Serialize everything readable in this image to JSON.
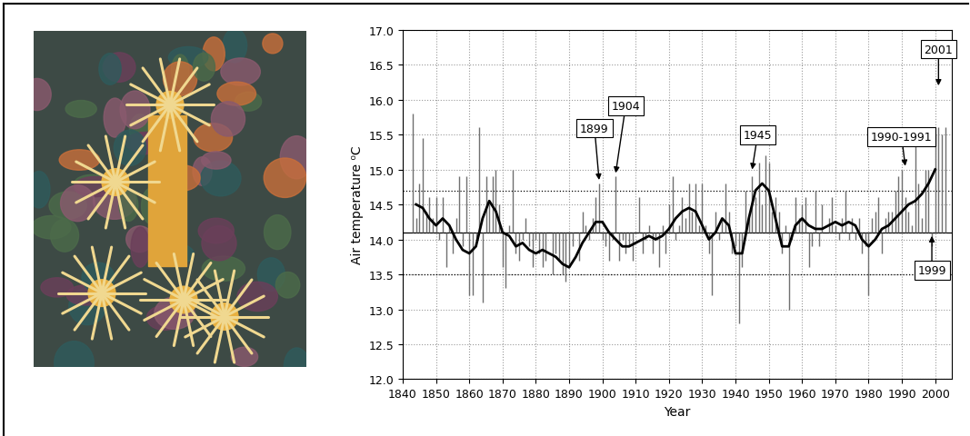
{
  "chart_data": {
    "type": "bar",
    "xlabel": "Year",
    "ylabel": "Air temperature ⁰C",
    "x": [
      1843,
      1844,
      1845,
      1846,
      1847,
      1848,
      1849,
      1850,
      1851,
      1852,
      1853,
      1854,
      1855,
      1856,
      1857,
      1858,
      1859,
      1860,
      1861,
      1862,
      1863,
      1864,
      1865,
      1866,
      1867,
      1868,
      1869,
      1870,
      1871,
      1872,
      1873,
      1874,
      1875,
      1876,
      1877,
      1878,
      1879,
      1880,
      1881,
      1882,
      1883,
      1884,
      1885,
      1886,
      1887,
      1888,
      1889,
      1890,
      1891,
      1892,
      1893,
      1894,
      1895,
      1896,
      1897,
      1898,
      1899,
      1900,
      1901,
      1902,
      1903,
      1904,
      1905,
      1906,
      1907,
      1908,
      1909,
      1910,
      1911,
      1912,
      1913,
      1914,
      1915,
      1916,
      1917,
      1918,
      1919,
      1920,
      1921,
      1922,
      1923,
      1924,
      1925,
      1926,
      1927,
      1928,
      1929,
      1930,
      1931,
      1932,
      1933,
      1934,
      1935,
      1936,
      1937,
      1938,
      1939,
      1940,
      1941,
      1942,
      1943,
      1944,
      1945,
      1946,
      1947,
      1948,
      1949,
      1950,
      1951,
      1952,
      1953,
      1954,
      1955,
      1956,
      1957,
      1958,
      1959,
      1960,
      1961,
      1962,
      1963,
      1964,
      1965,
      1966,
      1967,
      1968,
      1969,
      1970,
      1971,
      1972,
      1973,
      1974,
      1975,
      1976,
      1977,
      1978,
      1979,
      1980,
      1981,
      1982,
      1983,
      1984,
      1985,
      1986,
      1987,
      1988,
      1989,
      1990,
      1991,
      1992,
      1993,
      1994,
      1995,
      1996,
      1997,
      1998,
      1999,
      2000,
      2001,
      2002,
      2003
    ],
    "values": [
      15.8,
      14.3,
      14.8,
      15.45,
      14.4,
      14.6,
      14.3,
      14.6,
      14.0,
      14.6,
      13.6,
      14.2,
      13.8,
      14.3,
      14.9,
      13.9,
      14.9,
      13.2,
      13.2,
      14.0,
      15.6,
      13.1,
      14.9,
      14.5,
      14.9,
      15.0,
      14.5,
      13.6,
      13.3,
      14.2,
      15.0,
      13.8,
      13.7,
      14.0,
      14.3,
      13.9,
      13.6,
      14.0,
      13.8,
      13.6,
      13.7,
      14.1,
      13.5,
      13.8,
      13.7,
      13.5,
      13.4,
      13.6,
      13.9,
      14.1,
      13.7,
      14.4,
      14.2,
      14.0,
      14.3,
      14.6,
      14.8,
      14.0,
      13.9,
      13.7,
      14.0,
      14.9,
      13.7,
      14.0,
      13.8,
      13.9,
      13.7,
      14.1,
      14.6,
      13.8,
      14.0,
      14.2,
      13.8,
      14.0,
      13.6,
      14.2,
      13.8,
      14.5,
      14.9,
      14.0,
      14.2,
      14.6,
      14.3,
      14.8,
      14.4,
      14.8,
      14.2,
      14.8,
      14.2,
      13.8,
      13.2,
      14.4,
      14.0,
      14.3,
      14.8,
      14.4,
      13.8,
      13.9,
      12.8,
      13.6,
      14.7,
      14.3,
      14.9,
      14.6,
      15.1,
      14.5,
      15.2,
      15.1,
      14.4,
      14.6,
      14.4,
      13.8,
      14.2,
      13.0,
      14.0,
      14.6,
      14.3,
      14.5,
      14.6,
      13.6,
      13.9,
      14.7,
      13.9,
      14.5,
      14.1,
      14.3,
      14.6,
      14.2,
      14.0,
      14.3,
      14.7,
      14.0,
      14.3,
      14.0,
      14.3,
      13.8,
      13.9,
      13.2,
      14.3,
      14.4,
      14.6,
      13.8,
      14.3,
      14.4,
      14.4,
      14.7,
      14.9,
      15.0,
      14.6,
      14.4,
      14.2,
      15.6,
      14.8,
      14.3,
      15.0,
      15.0,
      13.9,
      15.5,
      15.6,
      15.5,
      15.6
    ],
    "baseline": 14.1,
    "color": "#707070",
    "smoothed": {
      "type": "line",
      "color": "#000000",
      "line_style": "solid",
      "x": [
        1844,
        1846,
        1848,
        1850,
        1852,
        1854,
        1856,
        1858,
        1860,
        1862,
        1864,
        1866,
        1868,
        1870,
        1872,
        1874,
        1876,
        1878,
        1880,
        1882,
        1884,
        1886,
        1888,
        1890,
        1892,
        1894,
        1896,
        1898,
        1900,
        1902,
        1904,
        1906,
        1908,
        1910,
        1912,
        1914,
        1916,
        1918,
        1920,
        1922,
        1924,
        1926,
        1928,
        1930,
        1932,
        1934,
        1936,
        1938,
        1940,
        1942,
        1944,
        1946,
        1948,
        1950,
        1952,
        1954,
        1956,
        1958,
        1960,
        1962,
        1964,
        1966,
        1968,
        1970,
        1972,
        1974,
        1976,
        1978,
        1980,
        1982,
        1984,
        1986,
        1988,
        1990,
        1992,
        1994,
        1996,
        1998,
        2000
      ],
      "values": [
        14.5,
        14.45,
        14.3,
        14.2,
        14.3,
        14.2,
        14.0,
        13.85,
        13.8,
        13.9,
        14.3,
        14.55,
        14.4,
        14.1,
        14.05,
        13.9,
        13.95,
        13.85,
        13.8,
        13.85,
        13.8,
        13.75,
        13.65,
        13.6,
        13.75,
        13.95,
        14.1,
        14.25,
        14.25,
        14.1,
        14.0,
        13.9,
        13.9,
        13.95,
        14.0,
        14.05,
        14.0,
        14.05,
        14.15,
        14.3,
        14.4,
        14.45,
        14.4,
        14.2,
        14.0,
        14.1,
        14.3,
        14.2,
        13.8,
        13.8,
        14.3,
        14.7,
        14.8,
        14.7,
        14.3,
        13.9,
        13.9,
        14.2,
        14.3,
        14.2,
        14.15,
        14.15,
        14.2,
        14.25,
        14.2,
        14.25,
        14.2,
        14.0,
        13.9,
        14.0,
        14.15,
        14.2,
        14.3,
        14.4,
        14.5,
        14.55,
        14.65,
        14.8,
        15.0
      ]
    },
    "hlines": [
      {
        "value": 14.7,
        "line_style": "dotted"
      },
      {
        "value": 14.1,
        "line_style": "solid"
      },
      {
        "value": 13.5,
        "line_style": "dotted"
      }
    ],
    "annotations": [
      {
        "text": "1899",
        "x": 1899,
        "y": 14.85
      },
      {
        "text": "1904",
        "x": 1904,
        "y": 14.95
      },
      {
        "text": "1945",
        "x": 1945,
        "y": 15.0
      },
      {
        "text": "1990-1991",
        "x": 1991,
        "y": 15.05
      },
      {
        "text": "2001",
        "x": 2001,
        "y": 16.2
      },
      {
        "text": "1999",
        "x": 1999,
        "y": 14.05
      }
    ],
    "xlim": [
      1840,
      2005
    ],
    "xticks": [
      1840,
      1850,
      1860,
      1870,
      1880,
      1890,
      1900,
      1910,
      1920,
      1930,
      1940,
      1950,
      1960,
      1970,
      1980,
      1990,
      2000
    ],
    "ylim": [
      12.0,
      17.0
    ],
    "yticks": [
      {
        "value": 12.0,
        "label": "12.0"
      },
      {
        "value": 12.5,
        "label": "12.5"
      },
      {
        "value": 13.0,
        "label": "13.0"
      },
      {
        "value": 13.5,
        "label": "13.5"
      },
      {
        "value": 14.0,
        "label": "14.0"
      },
      {
        "value": 14.5,
        "label": "14.5"
      },
      {
        "value": 15.0,
        "label": "15.0"
      },
      {
        "value": 15.5,
        "label": "15.5"
      },
      {
        "value": 16.0,
        "label": "16.0"
      },
      {
        "value": 16.5,
        "label": "16.5"
      },
      {
        "value": 17.0,
        "label": "17.0"
      }
    ],
    "grid": true
  }
}
